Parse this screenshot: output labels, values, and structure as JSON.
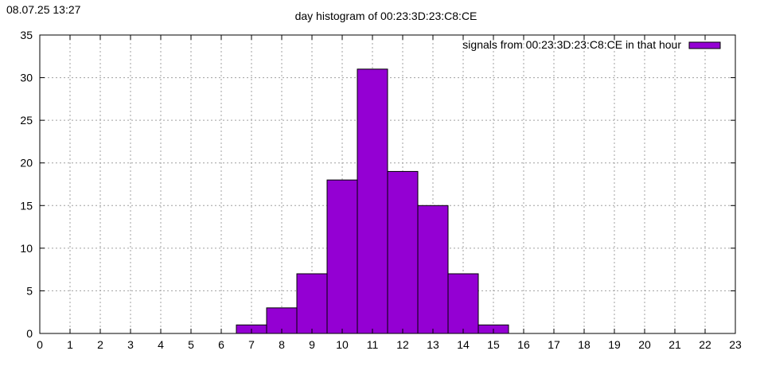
{
  "header": {
    "timestamp": "08.07.25 13:27"
  },
  "chart_data": {
    "type": "bar",
    "title": "day histogram of 00:23:3D:23:C8:CE",
    "xlabel": "",
    "ylabel": "",
    "xlim": [
      0,
      23
    ],
    "ylim": [
      0,
      35
    ],
    "x_ticks": [
      0,
      1,
      2,
      3,
      4,
      5,
      6,
      7,
      8,
      9,
      10,
      11,
      12,
      13,
      14,
      15,
      16,
      17,
      18,
      19,
      20,
      21,
      22,
      23
    ],
    "y_ticks": [
      0,
      5,
      10,
      15,
      20,
      25,
      30,
      35
    ],
    "grid": true,
    "legend_position": "top-right",
    "series": [
      {
        "name": "signals from 00:23:3D:23:C8:CE in that hour",
        "color": "#9400d3",
        "points": [
          {
            "x": 7,
            "y": 1
          },
          {
            "x": 8,
            "y": 3
          },
          {
            "x": 9,
            "y": 7
          },
          {
            "x": 10,
            "y": 18
          },
          {
            "x": 11,
            "y": 31
          },
          {
            "x": 12,
            "y": 19
          },
          {
            "x": 13,
            "y": 15
          },
          {
            "x": 14,
            "y": 7
          },
          {
            "x": 15,
            "y": 1
          }
        ]
      }
    ]
  }
}
